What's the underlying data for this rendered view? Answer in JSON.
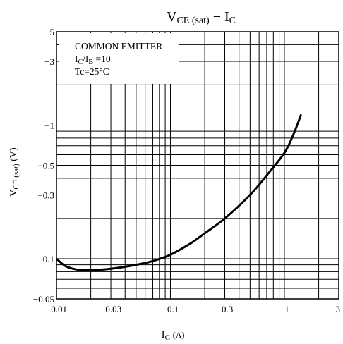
{
  "chart_data": {
    "type": "line",
    "title_main": "V",
    "title_main_sub": "CE (sat)",
    "title_sep": " − ",
    "title_right": "I",
    "title_right_sub": "C",
    "ylabel_main": "V",
    "ylabel_sub": "CE (sat)",
    "ylabel_unit": "(V)",
    "xlabel_main": "I",
    "xlabel_sub": "C",
    "xlabel_unit": "(A)",
    "xscale": "log",
    "yscale": "log",
    "xlim": [
      -0.01,
      -3
    ],
    "ylim": [
      -0.05,
      -5
    ],
    "x_ticks": [
      "−0.01",
      "−0.03",
      "−0.1",
      "−0.3",
      "−1",
      "−3"
    ],
    "x_tick_values": [
      -0.01,
      -0.03,
      -0.1,
      -0.3,
      -1,
      -3
    ],
    "y_ticks": [
      "−5",
      "−3",
      "−1",
      "−0.5",
      "−0.3",
      "−0.1",
      "−0.05"
    ],
    "y_tick_values": [
      -5,
      -3,
      -1,
      -0.5,
      -0.3,
      -0.1,
      -0.05
    ],
    "grid": true,
    "annotation": {
      "line1": "COMMON EMITTER",
      "line2_main": "I",
      "line2_sub1": "C",
      "line2_mid": "/I",
      "line2_sub2": "B",
      "line2_end": " =10",
      "line3": "Tc=25°C"
    },
    "series": [
      {
        "x": [
          -0.01,
          -0.012,
          -0.015,
          -0.02,
          -0.03,
          -0.05,
          -0.07,
          -0.1,
          -0.15,
          -0.2,
          -0.3,
          -0.5,
          -0.7,
          -1.0,
          -1.2,
          -1.4
        ],
        "y": [
          -0.1,
          -0.088,
          -0.083,
          -0.082,
          -0.084,
          -0.09,
          -0.096,
          -0.107,
          -0.13,
          -0.155,
          -0.2,
          -0.3,
          -0.42,
          -0.62,
          -0.85,
          -1.2
        ]
      }
    ]
  }
}
